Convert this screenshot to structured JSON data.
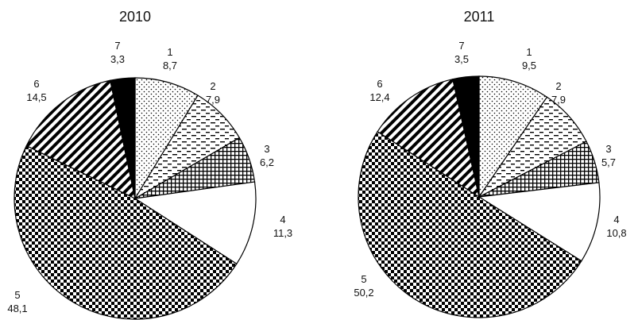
{
  "chart_data": [
    {
      "type": "pie",
      "title": "2010",
      "categories": [
        "1",
        "2",
        "3",
        "4",
        "5",
        "6",
        "7"
      ],
      "values": [
        "8,7",
        "7,9",
        "6,2",
        "11,3",
        "48,1",
        "14,5",
        "3,3"
      ],
      "numeric_values": [
        8.7,
        7.9,
        6.2,
        11.3,
        48.1,
        14.5,
        3.3
      ]
    },
    {
      "type": "pie",
      "title": "2011",
      "categories": [
        "1",
        "2",
        "3",
        "4",
        "5",
        "6",
        "7"
      ],
      "values": [
        "9,5",
        "7,9",
        "5,7",
        "10,8",
        "50,2",
        "12,4",
        "3,5"
      ],
      "numeric_values": [
        9.5,
        7.9,
        5.7,
        10.8,
        50.2,
        12.4,
        3.5
      ]
    }
  ],
  "slice_fills": [
    "dots",
    "dashes",
    "grid",
    "white",
    "checker",
    "diagonal",
    "black"
  ]
}
